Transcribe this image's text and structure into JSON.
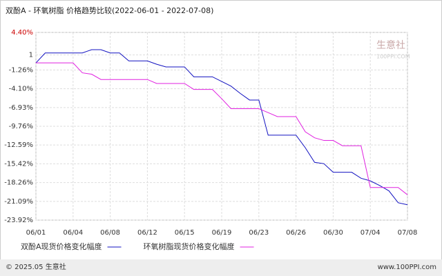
{
  "chart_data": {
    "type": "line",
    "title": "双酚A - 环氧树脂 价格趋势比较(2022-06-01 - 2022-07-08)",
    "categories": [
      "06/01",
      null,
      null,
      null,
      "06/04",
      null,
      null,
      null,
      "06/08",
      null,
      null,
      null,
      "06/12",
      null,
      null,
      null,
      "06/15",
      null,
      null,
      null,
      "06/19",
      null,
      null,
      null,
      "06/23",
      null,
      null,
      null,
      "06/26",
      null,
      null,
      null,
      "06/30",
      null,
      null,
      null,
      "07/04",
      null,
      null,
      null,
      "07/08"
    ],
    "series": [
      {
        "name": "双酚A现货价格变化幅度",
        "color": "#1010c0",
        "values": [
          -0.2,
          1.3,
          1.3,
          1.3,
          1.3,
          1.3,
          1.8,
          1.8,
          1.3,
          1.3,
          0.1,
          0.1,
          0.1,
          -0.4,
          -0.8,
          -0.8,
          -0.8,
          -2.3,
          -2.3,
          -2.3,
          -3.0,
          -3.7,
          -4.8,
          -5.8,
          -5.8,
          -11.1,
          -11.1,
          -11.1,
          -11.1,
          -13.0,
          -15.2,
          -15.4,
          -16.7,
          -16.7,
          -16.7,
          -17.6,
          -18.0,
          -18.7,
          -19.5,
          -21.3,
          -21.6
        ]
      },
      {
        "name": "环氧树脂现货价格变化幅度",
        "color": "#e020e0",
        "values": [
          -0.2,
          -0.2,
          -0.2,
          -0.2,
          -0.2,
          -1.7,
          -1.9,
          -2.7,
          -2.7,
          -2.7,
          -2.7,
          -2.7,
          -2.7,
          -3.3,
          -3.3,
          -3.3,
          -3.3,
          -4.2,
          -4.2,
          -4.2,
          -5.6,
          -7.1,
          -7.1,
          -7.1,
          -7.1,
          -7.7,
          -8.3,
          -8.3,
          -8.3,
          -10.6,
          -11.5,
          -11.9,
          -11.9,
          -12.7,
          -12.7,
          -12.7,
          -19.0,
          -19.0,
          -19.0,
          -19.0,
          -20.1
        ]
      }
    ],
    "ylim": [
      -23.92,
      4.4
    ],
    "yticks": [
      {
        "value": 4.4,
        "label": "4.40%"
      },
      1,
      {
        "value": -1.26,
        "label": "-1.26%"
      },
      {
        "value": -4.1,
        "label": "-4.10%"
      },
      {
        "value": -6.93,
        "label": "-6.93%"
      },
      {
        "value": -9.76,
        "label": "-9.76%"
      },
      {
        "value": -12.59,
        "label": "-12.59%"
      },
      {
        "value": -15.42,
        "label": "-15.42%"
      },
      {
        "value": -18.26,
        "label": "-18.26%"
      },
      {
        "value": -21.09,
        "label": "-21.09%"
      },
      {
        "value": -23.92,
        "label": "-23.92%"
      }
    ],
    "grid": true,
    "watermark": [
      "生意社",
      "100PPI.COM"
    ],
    "footer_left": "© 2025.05 生意社",
    "footer_right": "www.100PPI.com"
  }
}
